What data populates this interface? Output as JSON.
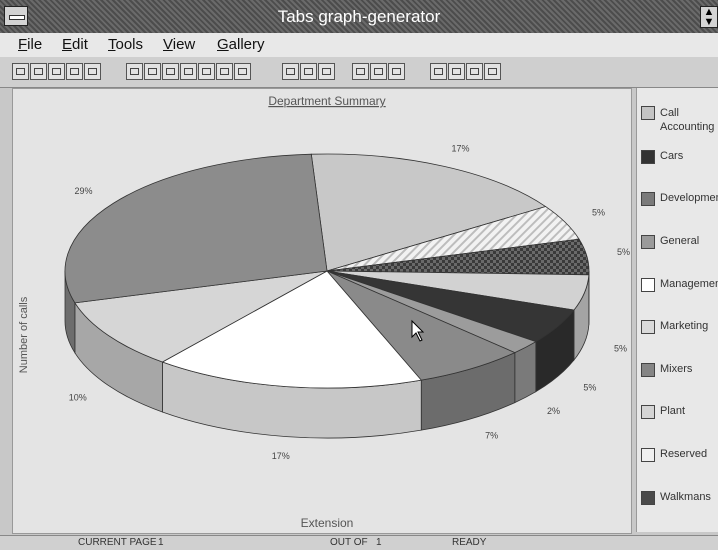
{
  "window": {
    "title": "Tabs graph-generator"
  },
  "menu": [
    {
      "u": "F",
      "rest": "ile"
    },
    {
      "u": "E",
      "rest": "dit"
    },
    {
      "u": "T",
      "rest": "ools"
    },
    {
      "u": "V",
      "rest": "iew"
    },
    {
      "u": "G",
      "rest": "allery"
    }
  ],
  "chart": {
    "title": "Department Summary",
    "xlabel": "Extension",
    "ylabel": "Number of calls"
  },
  "legend": [
    {
      "label": "Call Accounting",
      "color": "#c4c4c4"
    },
    {
      "label": "Cars",
      "color": "#333333"
    },
    {
      "label": "Development",
      "color": "#7a7a7a"
    },
    {
      "label": "General",
      "color": "#9a9a9a"
    },
    {
      "label": "Management",
      "color": "#ffffff"
    },
    {
      "label": "Marketing",
      "color": "#dadada"
    },
    {
      "label": "Mixers",
      "color": "#858585"
    },
    {
      "label": "Plant",
      "color": "#d4d4d4"
    },
    {
      "label": "Reserved",
      "color": "#f0f0f0"
    },
    {
      "label": "Walkmans",
      "color": "#4a4a4a"
    }
  ],
  "chart_data": {
    "type": "pie",
    "title": "Department Summary",
    "xlabel": "Extension",
    "ylabel": "Number of calls",
    "slices": [
      {
        "label": "Call Accounting",
        "value": 17,
        "pct": "17%",
        "color": "#c8c8c8"
      },
      {
        "label": "Reserved",
        "value": 5,
        "pct": "5%",
        "color": "#efefef",
        "pattern": "hatch"
      },
      {
        "label": "Walkmans",
        "value": 5,
        "pct": "5%",
        "color": "#555555",
        "pattern": "check"
      },
      {
        "label": "Plant",
        "value": 5,
        "pct": "5%",
        "color": "#d2d2d2"
      },
      {
        "label": "Cars",
        "value": 5,
        "pct": "5%",
        "color": "#353535"
      },
      {
        "label": "Marketing",
        "value": 2,
        "pct": "2%",
        "color": "#9c9c9c"
      },
      {
        "label": "Mixers",
        "value": 7,
        "pct": "7%",
        "color": "#8a8a8a"
      },
      {
        "label": "Management",
        "value": 17,
        "pct": "17%",
        "color": "#ffffff"
      },
      {
        "label": "General",
        "value": 10,
        "pct": "10%",
        "color": "#d6d6d6"
      },
      {
        "label": "Development",
        "value": 29,
        "pct": "29%",
        "color": "#8c8c8c"
      }
    ]
  },
  "status": {
    "current_page_label": "CURRENT PAGE",
    "current_page": "1",
    "out_of_label": "OUT OF",
    "out_of": "1",
    "state": "READY"
  }
}
